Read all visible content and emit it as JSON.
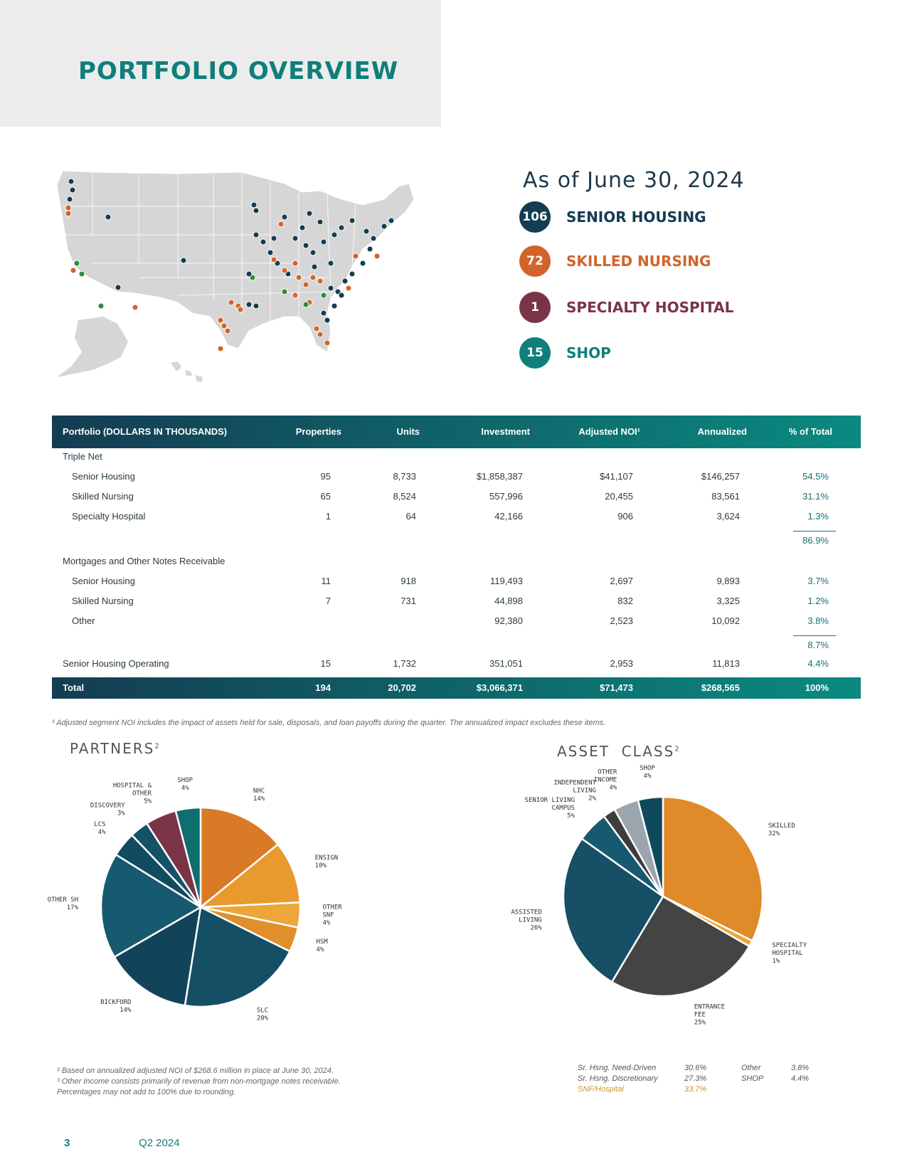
{
  "header": {
    "title": "PORTFOLIO OVERVIEW"
  },
  "as_of": "As of June 30, 2024",
  "categories": [
    {
      "count": "106",
      "label": "SENIOR HOUSING",
      "color": "#143c52"
    },
    {
      "count": "72",
      "label": "SKILLED NURSING",
      "color": "#d2642a"
    },
    {
      "count": "1",
      "label": "SPECIALTY HOSPITAL",
      "color": "#7a3446"
    },
    {
      "count": "15",
      "label": "SHOP",
      "color": "#0f7f7a"
    }
  ],
  "table": {
    "headers": [
      "Portfolio (DOLLARS IN THOUSANDS)",
      "Properties",
      "Units",
      "Investment",
      "Adjusted NOI¹",
      "Annualized",
      "% of Total"
    ],
    "section1": "Triple Net",
    "rows1": [
      [
        "Senior Housing",
        "95",
        "8,733",
        "$1,858,387",
        "$41,107",
        "$146,257",
        "54.5%"
      ],
      [
        "Skilled Nursing",
        "65",
        "8,524",
        "557,996",
        "20,455",
        "83,561",
        "31.1%"
      ],
      [
        "Specialty Hospital",
        "1",
        "64",
        "42,166",
        "906",
        "3,624",
        "1.3%"
      ]
    ],
    "subtotal1": "86.9%",
    "section2": "Mortgages and Other Notes Receivable",
    "rows2": [
      [
        "Senior Housing",
        "11",
        "918",
        "119,493",
        "2,697",
        "9,893",
        "3.7%"
      ],
      [
        "Skilled Nursing",
        "7",
        "731",
        "44,898",
        "832",
        "3,325",
        "1.2%"
      ],
      [
        "Other",
        "",
        "",
        "92,380",
        "2,523",
        "10,092",
        "3.8%"
      ]
    ],
    "subtotal2": "8.7%",
    "row3": [
      "Senior Housing Operating",
      "15",
      "1,732",
      "351,051",
      "2,953",
      "11,813",
      "4.4%"
    ],
    "total": [
      "Total",
      "194",
      "20,702",
      "$3,066,371",
      "$71,473",
      "$268,565",
      "100%"
    ]
  },
  "footnote1": "¹ Adjusted segment NOI includes the impact of assets held for sale, disposals, and loan payoffs during the quarter. The annualized impact excludes these items.",
  "partners": {
    "title": "PARTNERS",
    "sup": "2",
    "slices": [
      {
        "name": "NHC",
        "value": 14,
        "label": "14%",
        "color": "#d97a26"
      },
      {
        "name": "ENSIGN",
        "value": 10,
        "label": "10%",
        "color": "#e89a2e"
      },
      {
        "name": "OTHER SNF",
        "value": 4,
        "label": "4%",
        "color": "#eda63a"
      },
      {
        "name": "HSM",
        "value": 4,
        "label": "4%",
        "color": "#e08f2c"
      },
      {
        "name": "SLC",
        "value": 20,
        "label": "20%",
        "color": "#144f66"
      },
      {
        "name": "BICKFORD",
        "value": 14,
        "label": "14%",
        "color": "#114459"
      },
      {
        "name": "OTHER SH",
        "value": 17,
        "label": "17%",
        "color": "#175a70"
      },
      {
        "name": "LCS",
        "value": 4,
        "label": "4%",
        "color": "#124a5f"
      },
      {
        "name": "DISCOVERY",
        "value": 3,
        "label": "3%",
        "color": "#155268"
      },
      {
        "name": "HOSPITAL & OTHER",
        "value": 5,
        "label": "5%",
        "color": "#7a3446"
      },
      {
        "name": "SHOP",
        "value": 4,
        "label": "4%",
        "color": "#0f6e6e"
      }
    ]
  },
  "asset_class": {
    "title": "ASSET  CLASS",
    "sup": "2",
    "slices": [
      {
        "name": "SKILLED",
        "value": 32,
        "label": "32%",
        "color": "#e08a2a"
      },
      {
        "name": "SPECIALTY HOSPITAL",
        "value": 1,
        "label": "1%",
        "color": "#eda63a"
      },
      {
        "name": "ENTRANCE FEE",
        "value": 25,
        "label": "25%",
        "color": "#444444"
      },
      {
        "name": "ASSISTED LIVING",
        "value": 26,
        "label": "26%",
        "color": "#164f66"
      },
      {
        "name": "SENIOR LIVING CAMPUS",
        "value": 5,
        "label": "5%",
        "color": "#175a70"
      },
      {
        "name": "INDEPENDENT LIVING",
        "value": 2,
        "label": "2%",
        "color": "#3d3d3d"
      },
      {
        "name": "OTHER INCOME",
        "value": 4,
        "label": "4%",
        "color": "#9aa5ad"
      },
      {
        "name": "SHOP",
        "value": 4,
        "label": "4%",
        "color": "#0e4a5c"
      }
    ]
  },
  "footnotes2": [
    "² Based on annualized adjusted NOI of $268.6 million in place at June 30, 2024.",
    "³ Other Income consists primarily of revenue from non-mortgage notes receivable.",
    "Percentages may not add to 100% due to rounding."
  ],
  "legend": {
    "need_driven_label": "Sr. Hsng. Need-Driven",
    "need_driven_value": "30.6%",
    "discretionary_label": "Sr. Hsng. Discretionary",
    "discretionary_value": "27.3%",
    "snf_label": "SNF/Hospital",
    "snf_value": "33.7%",
    "other_label": "Other",
    "other_value": "3.8%",
    "shop_label": "SHOP",
    "shop_value": "4.4%"
  },
  "footer": {
    "page_number": "3",
    "quarter": "Q2 2024"
  },
  "map_colors": {
    "land": "#d6d6d6",
    "border": "#ffffff",
    "senior": "#143c52",
    "skilled": "#d2642a",
    "shop": "#2e8b3e"
  }
}
